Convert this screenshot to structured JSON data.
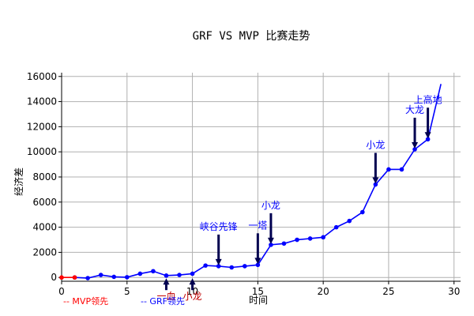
{
  "chart_data": {
    "type": "line",
    "title": "GRF VS MVP 比赛走势",
    "xlabel": "时间",
    "ylabel": "经济差",
    "xlim": [
      0,
      30.5
    ],
    "ylim": [
      -300,
      16300
    ],
    "xticks": [
      0,
      5,
      10,
      15,
      20,
      25,
      30
    ],
    "yticks": [
      0,
      2000,
      4000,
      6000,
      8000,
      10000,
      12000,
      14000,
      16000
    ],
    "grid": true,
    "colors": {
      "mvp": "#ff0000",
      "grf": "#0000ff",
      "arrow": "#000050"
    },
    "mvp_series": {
      "x": [
        0,
        1
      ],
      "y": [
        0,
        0
      ]
    },
    "grf_series": {
      "x": [
        1,
        2,
        3,
        4,
        5,
        6,
        7,
        8,
        9,
        10,
        11,
        12,
        13,
        14,
        15,
        16,
        17,
        18,
        19,
        20,
        21,
        22,
        23,
        24,
        25,
        26,
        27,
        28
      ],
      "y": [
        0,
        -50,
        200,
        50,
        20,
        300,
        500,
        150,
        200,
        300,
        950,
        900,
        800,
        900,
        1000,
        2600,
        2700,
        3000,
        3100,
        3200,
        4000,
        4500,
        5200,
        7400,
        8600,
        8600,
        10200,
        11000
      ]
    },
    "grf_extension": {
      "x": [
        28,
        29
      ],
      "y": [
        11000,
        15400
      ]
    },
    "legend": [
      {
        "label": "-- MVP领先",
        "color": "#ff0000"
      },
      {
        "label": "-- GRF领先",
        "color": "#0000ff"
      }
    ],
    "annotations": [
      {
        "text": "一血",
        "x": 8,
        "y": 0,
        "dir": "up",
        "color": "#c00000"
      },
      {
        "text": "小龙",
        "x": 10,
        "y": 0,
        "dir": "up",
        "color": "#c00000"
      },
      {
        "text": "峡谷先锋",
        "x": 12,
        "y": 900,
        "dir": "down",
        "color": "#0000ff"
      },
      {
        "text": "一塔",
        "x": 15,
        "y": 1000,
        "dir": "down",
        "color": "#0000ff"
      },
      {
        "text": "小龙",
        "x": 16,
        "y": 2600,
        "dir": "down",
        "color": "#0000ff"
      },
      {
        "text": "小龙",
        "x": 24,
        "y": 7400,
        "dir": "down",
        "color": "#0000ff"
      },
      {
        "text": "大龙",
        "x": 27,
        "y": 10200,
        "dir": "down",
        "color": "#0000ff"
      },
      {
        "text": "上高地",
        "x": 28,
        "y": 11000,
        "dir": "down",
        "color": "#0000ff"
      }
    ]
  }
}
